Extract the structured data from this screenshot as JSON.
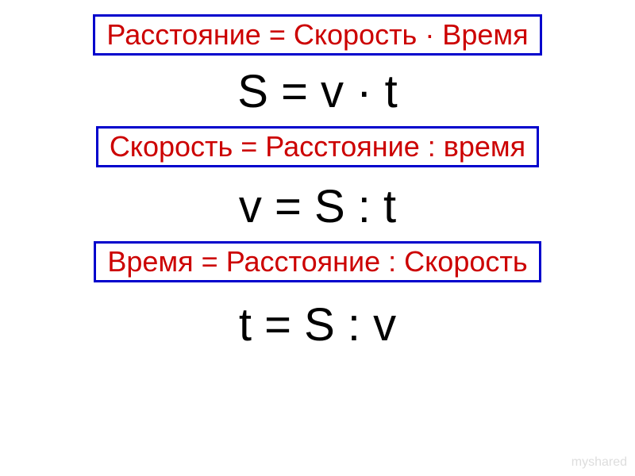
{
  "formulas": {
    "distance": {
      "word_equation": "Расстояние = Скорость · Время",
      "symbol_equation": "S = v · t"
    },
    "speed": {
      "word_equation": "Скорость = Расстояние : время",
      "symbol_equation": "v = S : t"
    },
    "time": {
      "word_equation": "Время = Расстояние : Скорость",
      "symbol_equation": "t = S : v"
    }
  },
  "styling": {
    "box_border_color": "#0000cc",
    "box_border_width": 3,
    "word_text_color": "#cc0000",
    "word_font_size": 36,
    "symbol_text_color": "#000000",
    "symbol_font_size": 58,
    "background_color": "#ffffff",
    "watermark_color": "#dddddd"
  },
  "watermark": "myshared"
}
